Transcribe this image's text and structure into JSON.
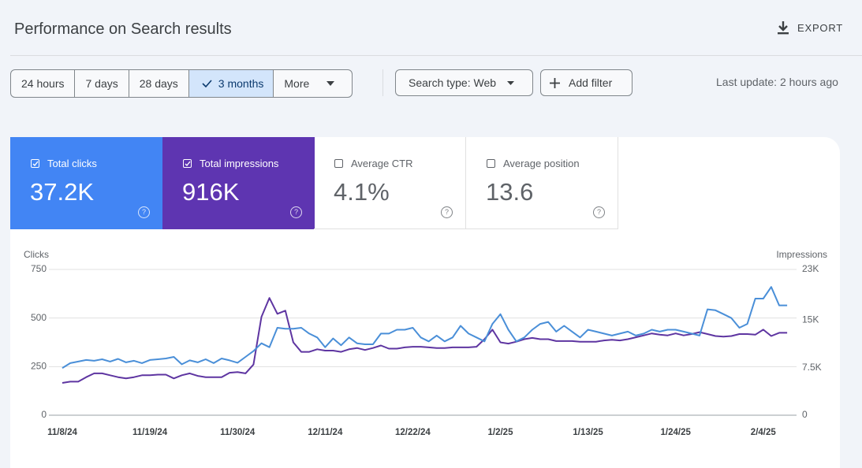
{
  "header": {
    "title": "Performance on Search results",
    "export": "EXPORT"
  },
  "filters": {
    "date_ranges": [
      "24 hours",
      "7 days",
      "28 days",
      "3 months",
      "More"
    ],
    "search_type": "Search type: Web",
    "add_filter": "Add filter",
    "last_update": "Last update: 2 hours ago"
  },
  "metrics": [
    {
      "label": "Total clicks",
      "value": "37.2K"
    },
    {
      "label": "Total impressions",
      "value": "916K"
    },
    {
      "label": "Average CTR",
      "value": "4.1%"
    },
    {
      "label": "Average position",
      "value": "13.6"
    }
  ],
  "chart_data": {
    "type": "line",
    "categories": [
      "11/8/24",
      null,
      null,
      null,
      null,
      null,
      null,
      null,
      null,
      null,
      null,
      "11/19/24",
      null,
      null,
      null,
      null,
      null,
      null,
      null,
      null,
      null,
      null,
      "11/30/24",
      null,
      null,
      null,
      null,
      null,
      null,
      null,
      null,
      null,
      null,
      "12/11/24",
      null,
      null,
      null,
      null,
      null,
      null,
      null,
      null,
      null,
      null,
      "12/22/24",
      null,
      null,
      null,
      null,
      null,
      null,
      null,
      null,
      null,
      null,
      "1/2/25",
      null,
      null,
      null,
      null,
      null,
      null,
      null,
      null,
      null,
      null,
      "1/13/25",
      null,
      null,
      null,
      null,
      null,
      null,
      null,
      null,
      null,
      null,
      "1/24/25",
      null,
      null,
      null,
      null,
      null,
      null,
      null,
      null,
      null,
      null,
      "2/4/25",
      null,
      null,
      null
    ],
    "series": [
      {
        "name": "Clicks",
        "color": "#4a8fd8",
        "values": [
          243,
          268,
          276,
          284,
          280,
          288,
          276,
          290,
          272,
          280,
          268,
          284,
          288,
          292,
          300,
          262,
          282,
          272,
          288,
          268,
          292,
          282,
          270,
          300,
          330,
          370,
          350,
          450,
          445,
          445,
          450,
          420,
          400,
          350,
          395,
          360,
          400,
          370,
          365,
          365,
          420,
          420,
          440,
          440,
          450,
          400,
          380,
          410,
          380,
          400,
          460,
          420,
          400,
          380,
          470,
          520,
          440,
          380,
          400,
          440,
          470,
          480,
          430,
          460,
          430,
          400,
          440,
          430,
          420,
          410,
          420,
          430,
          410,
          420,
          440,
          430,
          440,
          440,
          430,
          420,
          410,
          545,
          540,
          520,
          500,
          450,
          470,
          600,
          600,
          660,
          565,
          565
        ]
      },
      {
        "name": "Impressions",
        "color": "#5e35a1",
        "axis": "y2",
        "values": [
          5100,
          5300,
          5300,
          6000,
          6600,
          6600,
          6300,
          6000,
          5800,
          6000,
          6300,
          6300,
          6400,
          6400,
          5800,
          6300,
          6600,
          6200,
          6000,
          6000,
          6000,
          6700,
          6800,
          6600,
          8000,
          15500,
          18500,
          16000,
          16500,
          11500,
          10000,
          10000,
          10400,
          10200,
          10200,
          10000,
          10400,
          10600,
          10300,
          10600,
          11000,
          10500,
          10500,
          10700,
          10800,
          10800,
          10700,
          10600,
          10600,
          10700,
          10700,
          10700,
          10800,
          12000,
          13500,
          11500,
          11300,
          11600,
          12000,
          12200,
          12000,
          12000,
          11700,
          11700,
          11700,
          11600,
          11600,
          11600,
          11800,
          11900,
          11800,
          12000,
          12300,
          12600,
          12900,
          12700,
          12600,
          12900,
          12600,
          12800,
          13100,
          12800,
          12500,
          12400,
          12500,
          12800,
          12800,
          12700,
          13500,
          12500,
          13000,
          13000
        ]
      }
    ],
    "ylim": [
      0,
      750
    ],
    "yticks": [
      0,
      250,
      500,
      750
    ],
    "y2lim": [
      0,
      23000
    ],
    "y2ticks": [
      0,
      {
        "value": 7500,
        "label": "7.5K"
      },
      {
        "value": 15000,
        "label": "15K"
      },
      {
        "value": 23000,
        "label": "23K"
      }
    ],
    "grid": true
  }
}
